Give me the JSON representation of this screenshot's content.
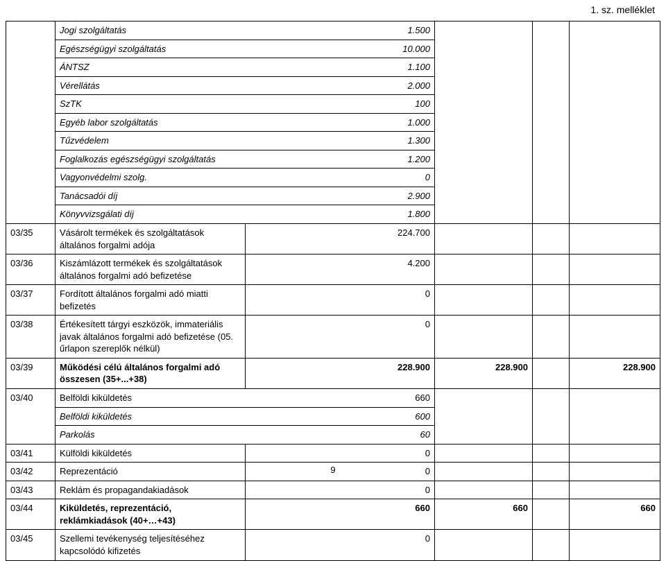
{
  "header": {
    "annex": "1. sz. melléklet"
  },
  "italic_block": [
    {
      "label": "Jogi szolgáltatás",
      "value": "1.500"
    },
    {
      "label": "Egészségügyi szolgáltatás",
      "value": "10.000"
    },
    {
      "label": "ÁNTSZ",
      "value": "1.100"
    },
    {
      "label": "Vérellátás",
      "value": "2.000"
    },
    {
      "label": "SzTK",
      "value": "100"
    },
    {
      "label": "Egyéb labor szolgáltatás",
      "value": "1.000"
    },
    {
      "label": "Tűzvédelem",
      "value": "1.300"
    },
    {
      "label": "Foglalkozás egészségügyi szolgáltatás",
      "value": "1.200"
    },
    {
      "label": "Vagyonvédelmi szolg.",
      "value": "0"
    },
    {
      "label": "Tanácsadói díj",
      "value": "2.900"
    },
    {
      "label": "Könyvvizsgálati díj",
      "value": "1.800"
    }
  ],
  "rows": [
    {
      "code": "03/35",
      "desc": "Vásárolt termékek és szolgáltatások általános forgalmi adója",
      "v1": "224.700",
      "v2": "",
      "v4": ""
    },
    {
      "code": "03/36",
      "desc": "Kiszámlázott termékek és szolgáltatások általános forgalmi adó befizetése",
      "v1": "4.200",
      "v2": "",
      "v4": ""
    },
    {
      "code": "03/37",
      "desc": "Fordított általános forgalmi adó miatti befizetés",
      "v1": "0",
      "v2": "",
      "v4": ""
    },
    {
      "code": "03/38",
      "desc": "Értékesített tárgyi eszközök, immateriális javak általános forgalmi adó befizetése (05. űrlapon szereplők nélkül)",
      "v1": "0",
      "v2": "",
      "v4": ""
    },
    {
      "code": "03/39",
      "desc": "Működési célú általános forgalmi adó összesen (35+...+38)",
      "v1": "228.900",
      "v2": "228.900",
      "v4": "228.900",
      "bold": true
    },
    {
      "code": "03/40",
      "desc": "Belföldi kiküldetés",
      "v1": "660",
      "v2": "",
      "v4": "",
      "sub": [
        {
          "label": "Belföldi kiküldetés",
          "value": "600"
        },
        {
          "label": "Parkolás",
          "value": "60"
        }
      ]
    },
    {
      "code": "03/41",
      "desc": "Külföldi kiküldetés",
      "v1": "0",
      "v2": "",
      "v4": ""
    },
    {
      "code": "03/42",
      "desc": "Reprezentáció",
      "v1": "0",
      "v2": "",
      "v4": ""
    },
    {
      "code": "03/43",
      "desc": "Reklám és propagandakiadások",
      "v1": "0",
      "v2": "",
      "v4": ""
    },
    {
      "code": "03/44",
      "desc": "Kiküldetés, reprezentáció, reklámkiadások (40+…+43)",
      "v1": "660",
      "v2": "660",
      "v4": "660",
      "bold": true
    },
    {
      "code": "03/45",
      "desc": "Szellemi tevékenység teljesítéséhez kapcsolódó kifizetés",
      "v1": "0",
      "v2": "",
      "v4": ""
    }
  ],
  "pagenum": "9"
}
